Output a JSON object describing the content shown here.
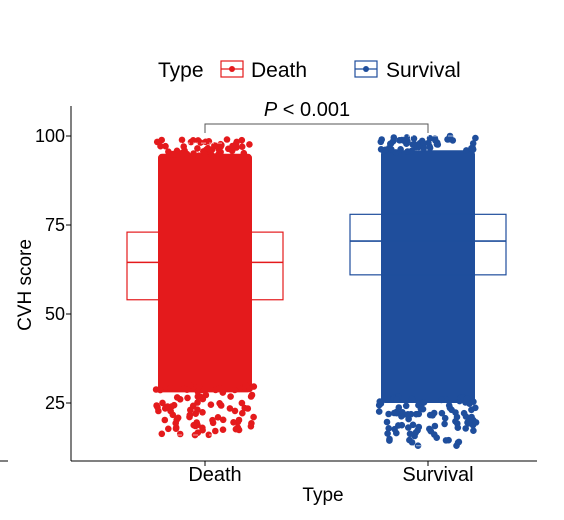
{
  "chart_data": {
    "type": "box",
    "xlabel": "Type",
    "ylabel": "CVH score",
    "ylim": [
      10,
      105
    ],
    "yticks": [
      25,
      50,
      75,
      100
    ],
    "categories": [
      "Death",
      "Survival"
    ],
    "legend": {
      "title": "Type",
      "placement": "top",
      "entries": [
        "Death",
        "Survival"
      ]
    },
    "annotation": {
      "prefix": "P",
      "rest": " < 0.001"
    },
    "colors": {
      "Death": "#e41a1c",
      "Survival": "#1f4e9c"
    },
    "series": [
      {
        "name": "Death",
        "box": {
          "q1": 54,
          "median": 64.5,
          "q3": 73,
          "whisker_low": 16,
          "whisker_high": 98
        },
        "points_range": [
          16,
          99
        ]
      },
      {
        "name": "Survival",
        "box": {
          "q1": 61,
          "median": 70.5,
          "q3": 78,
          "whisker_low": 13,
          "whisker_high": 100
        },
        "points_range": [
          13,
          100
        ]
      }
    ]
  }
}
